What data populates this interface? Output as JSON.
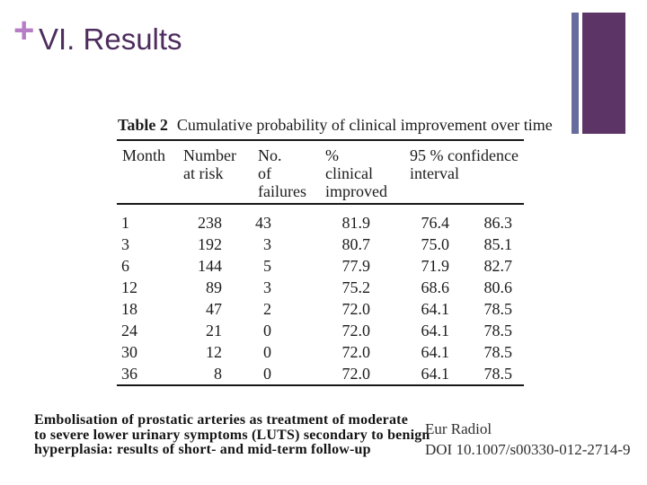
{
  "slide": {
    "bullet_glyph": "+",
    "title": "VI. Results"
  },
  "theme_colors": {
    "bullet_plus": "#b67cc6",
    "title_text": "#4d2c5e",
    "thin_bar": "#686c9d",
    "wide_bar": "#5d3466"
  },
  "table": {
    "caption_label": "Table 2",
    "caption_text": "Cumulative probability of clinical improvement over time",
    "headers": [
      {
        "l1": "Month",
        "l2": ""
      },
      {
        "l1": "Number",
        "l2": "at risk"
      },
      {
        "l1": "No. of",
        "l2": "failures"
      },
      {
        "l1": "% clinical",
        "l2": "improved"
      },
      {
        "l1": "95 % confidence",
        "l2": "interval"
      }
    ],
    "rows": [
      {
        "m": "1",
        "risk": "238",
        "fail": "43",
        "imp": "81.9",
        "lo": "76.4",
        "hi": "86.3"
      },
      {
        "m": "3",
        "risk": "192",
        "fail": "3",
        "imp": "80.7",
        "lo": "75.0",
        "hi": "85.1"
      },
      {
        "m": "6",
        "risk": "144",
        "fail": "5",
        "imp": "77.9",
        "lo": "71.9",
        "hi": "82.7"
      },
      {
        "m": "12",
        "risk": "89",
        "fail": "3",
        "imp": "75.2",
        "lo": "68.6",
        "hi": "80.6"
      },
      {
        "m": "18",
        "risk": "47",
        "fail": "2",
        "imp": "72.0",
        "lo": "64.1",
        "hi": "78.5"
      },
      {
        "m": "24",
        "risk": "21",
        "fail": "0",
        "imp": "72.0",
        "lo": "64.1",
        "hi": "78.5"
      },
      {
        "m": "30",
        "risk": "12",
        "fail": "0",
        "imp": "72.0",
        "lo": "64.1",
        "hi": "78.5"
      },
      {
        "m": "36",
        "risk": "8",
        "fail": "0",
        "imp": "72.0",
        "lo": "64.1",
        "hi": "78.5"
      }
    ]
  },
  "footer": {
    "article_title_lines": [
      "Embolisation of prostatic arteries as treatment of moderate",
      "to severe lower urinary symptoms (LUTS) secondary to benign",
      "hyperplasia: results of short- and mid-term follow-up"
    ],
    "journal": "Eur Radiol",
    "doi": "DOI 10.1007/s00330-012-2714-9"
  }
}
